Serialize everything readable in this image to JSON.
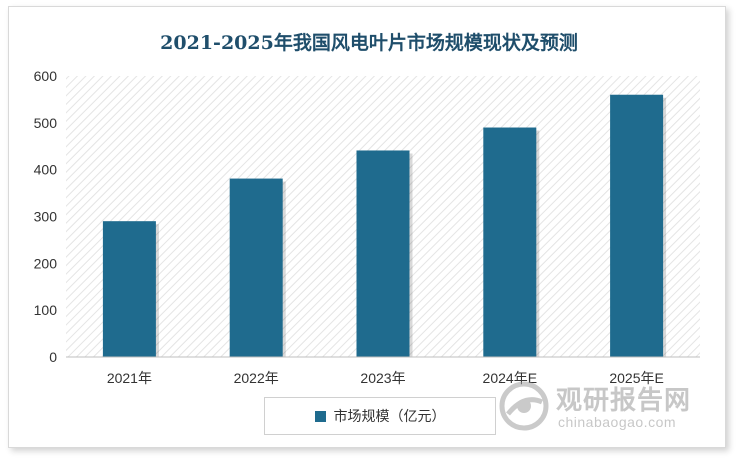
{
  "chart_data": {
    "type": "bar",
    "title": "2021-2025年我国风电叶片市场规模现状及预测",
    "categories": [
      "2021年",
      "2022年",
      "2023年",
      "2024年E",
      "2025年E"
    ],
    "series": [
      {
        "name": "市场规模（亿元）",
        "values": [
          290,
          381,
          441,
          490,
          560
        ]
      }
    ],
    "yticks": [
      "0",
      "100",
      "200",
      "300",
      "400",
      "500",
      "600"
    ],
    "ylim": [
      0,
      600
    ],
    "grid": "diagonal-hatch background",
    "legend": "bottom-center",
    "colors": {
      "bar": "#1f6b8e",
      "title": "#1f4e6b"
    }
  },
  "watermark": {
    "cn": "观研报告网",
    "en": "chinabaogao.com"
  }
}
